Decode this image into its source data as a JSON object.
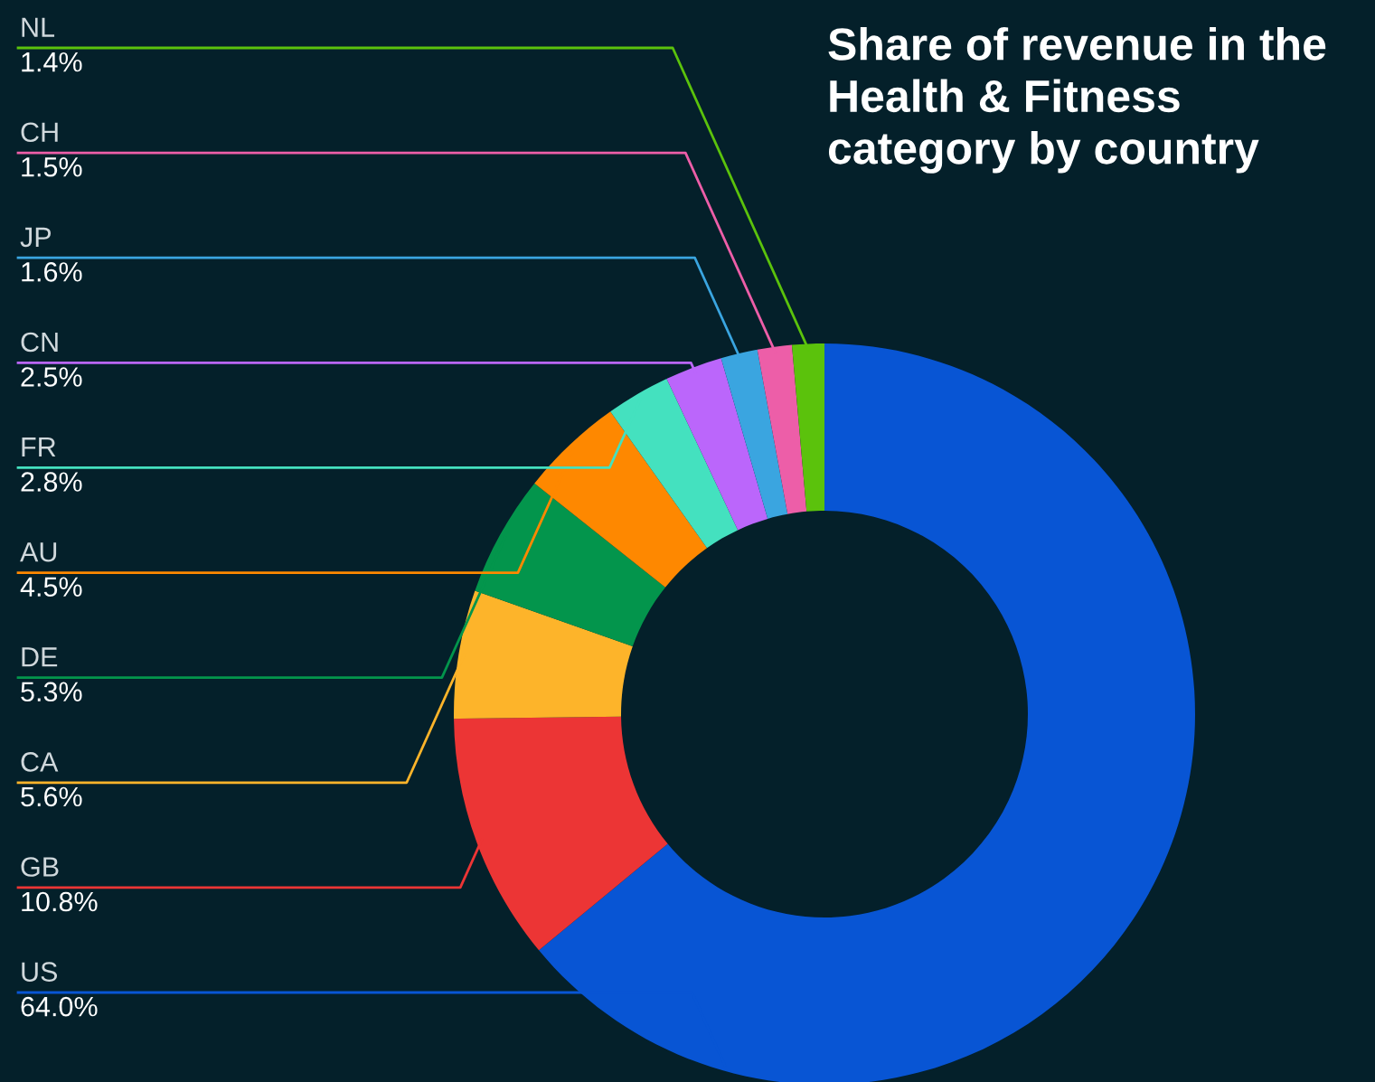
{
  "chart_data": {
    "type": "donut",
    "title": "Share of revenue in the Health & Fitness category by country",
    "categories": [
      "US",
      "GB",
      "CA",
      "DE",
      "AU",
      "FR",
      "CN",
      "JP",
      "CH",
      "NL"
    ],
    "values": [
      64.0,
      10.8,
      5.6,
      5.3,
      4.5,
      2.8,
      2.5,
      1.6,
      1.5,
      1.4
    ],
    "value_labels": [
      "64.0%",
      "10.8%",
      "5.6%",
      "5.3%",
      "4.5%",
      "2.8%",
      "2.5%",
      "1.6%",
      "1.5%",
      "1.4%"
    ],
    "colors": [
      "#0855d4",
      "#ec3535",
      "#fdb42a",
      "#03954c",
      "#fe8800",
      "#44e1bf",
      "#bb66fb",
      "#3aa5e0",
      "#ed5ea8",
      "#5bc20c"
    ],
    "legend": false
  }
}
